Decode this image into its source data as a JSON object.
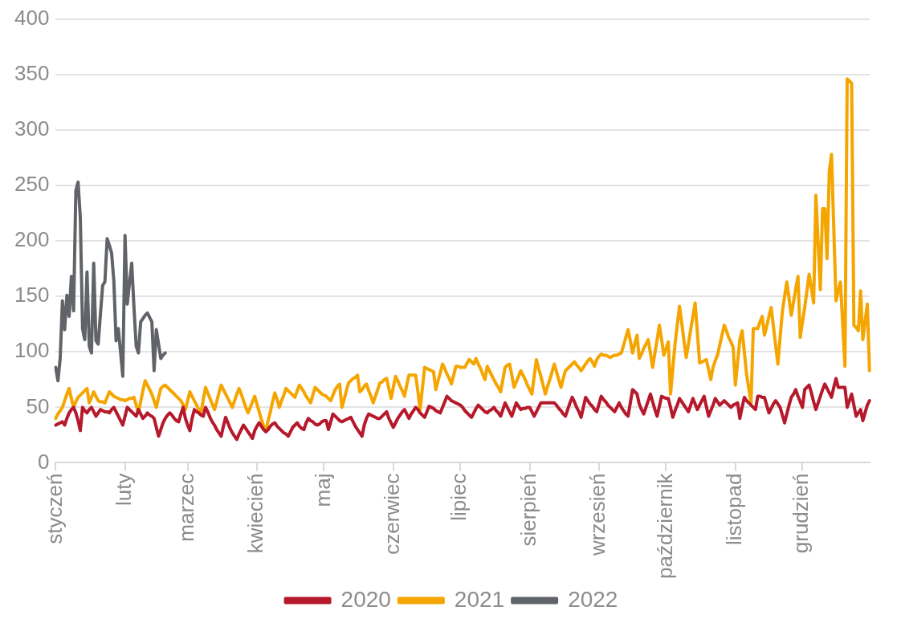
{
  "chart_data": {
    "type": "line",
    "categories": [
      "styczeń",
      null,
      null,
      null,
      null,
      null,
      null,
      null,
      null,
      null,
      null,
      null,
      null,
      null,
      null,
      null,
      null,
      null,
      null,
      null,
      null,
      null,
      null,
      null,
      null,
      null,
      null,
      null,
      null,
      null,
      null,
      "luty",
      null,
      null,
      null,
      null,
      null,
      null,
      null,
      null,
      null,
      null,
      null,
      null,
      null,
      null,
      null,
      null,
      null,
      null,
      null,
      null,
      null,
      null,
      null,
      null,
      null,
      null,
      null,
      "marzec",
      null,
      null,
      null,
      null,
      null,
      null,
      null,
      null,
      null,
      null,
      null,
      null,
      null,
      null,
      null,
      null,
      null,
      null,
      null,
      null,
      null,
      null,
      null,
      null,
      null,
      null,
      null,
      null,
      null,
      null,
      "kwiecień",
      null,
      null,
      null,
      null,
      null,
      null,
      null,
      null,
      null,
      null,
      null,
      null,
      null,
      null,
      null,
      null,
      null,
      null,
      null,
      null,
      null,
      null,
      null,
      null,
      null,
      null,
      null,
      null,
      null,
      "maj",
      null,
      null,
      null,
      null,
      null,
      null,
      null,
      null,
      null,
      null,
      null,
      null,
      null,
      null,
      null,
      null,
      null,
      null,
      null,
      null,
      null,
      null,
      null,
      null,
      null,
      null,
      null,
      null,
      null,
      null,
      "czerwiec",
      null,
      null,
      null,
      null,
      null,
      null,
      null,
      null,
      null,
      null,
      null,
      null,
      null,
      null,
      null,
      null,
      null,
      null,
      null,
      null,
      null,
      null,
      null,
      null,
      null,
      null,
      null,
      null,
      null,
      "lipiec",
      null,
      null,
      null,
      null,
      null,
      null,
      null,
      null,
      null,
      null,
      null,
      null,
      null,
      null,
      null,
      null,
      null,
      null,
      null,
      null,
      null,
      null,
      null,
      null,
      null,
      null,
      null,
      null,
      null,
      null,
      "sierpień",
      null,
      null,
      null,
      null,
      null,
      null,
      null,
      null,
      null,
      null,
      null,
      null,
      null,
      null,
      null,
      null,
      null,
      null,
      null,
      null,
      null,
      null,
      null,
      null,
      null,
      null,
      null,
      null,
      null,
      null,
      "wrzesień",
      null,
      null,
      null,
      null,
      null,
      null,
      null,
      null,
      null,
      null,
      null,
      null,
      null,
      null,
      null,
      null,
      null,
      null,
      null,
      null,
      null,
      null,
      null,
      null,
      null,
      null,
      null,
      null,
      null,
      "październik",
      null,
      null,
      null,
      null,
      null,
      null,
      null,
      null,
      null,
      null,
      null,
      null,
      null,
      null,
      null,
      null,
      null,
      null,
      null,
      null,
      null,
      null,
      null,
      null,
      null,
      null,
      null,
      null,
      null,
      null,
      "listopad",
      null,
      null,
      null,
      null,
      null,
      null,
      null,
      null,
      null,
      null,
      null,
      null,
      null,
      null,
      null,
      null,
      null,
      null,
      null,
      null,
      null,
      null,
      null,
      null,
      null,
      null,
      null,
      null,
      null,
      "grudzień",
      null,
      null,
      null,
      null,
      null,
      null,
      null,
      null,
      null,
      null,
      null,
      null,
      null,
      null,
      null,
      null,
      null,
      null,
      null,
      null,
      null,
      null,
      null,
      null,
      null,
      null,
      null,
      null,
      null,
      null
    ],
    "ylim": [
      0,
      400
    ],
    "yticks": [
      0,
      50,
      100,
      150,
      200,
      250,
      300,
      350,
      400
    ],
    "grid": "y",
    "legend": "bottom",
    "marker": "none",
    "line_style": "solid",
    "series": [
      {
        "name": "2020",
        "color": "#b5192b",
        "values": [
          34,
          35,
          36,
          37,
          34,
          40,
          45,
          48,
          50,
          45,
          38,
          29,
          50,
          47,
          45,
          48,
          50,
          46,
          42,
          45,
          48,
          47,
          46,
          46,
          45,
          48,
          50,
          46,
          42,
          38,
          34,
          42,
          50,
          48,
          46,
          44,
          42,
          48,
          44,
          40,
          42,
          45,
          43,
          42,
          40,
          32,
          24,
          30,
          36,
          40,
          43,
          45,
          43,
          40,
          38,
          37,
          44,
          50,
          40,
          34,
          29,
          40,
          48,
          46,
          45,
          43,
          42,
          50,
          46,
          41,
          37,
          34,
          30,
          27,
          24,
          33,
          41,
          36,
          31,
          27,
          24,
          21,
          26,
          30,
          34,
          31,
          28,
          25,
          22,
          29,
          33,
          36,
          33,
          30,
          28,
          30,
          33,
          35,
          36,
          33,
          31,
          29,
          27,
          26,
          24,
          28,
          32,
          34,
          36,
          33,
          31,
          30,
          36,
          40,
          38,
          37,
          35,
          34,
          35,
          37,
          38,
          38,
          30,
          37,
          44,
          42,
          40,
          38,
          37,
          38,
          39,
          40,
          41,
          37,
          33,
          30,
          27,
          24,
          34,
          40,
          44,
          43,
          42,
          41,
          40,
          40,
          42,
          44,
          46,
          40,
          36,
          32,
          36,
          40,
          43,
          46,
          48,
          44,
          40,
          44,
          47,
          50,
          48,
          45,
          43,
          41,
          46,
          51,
          50,
          49,
          47,
          46,
          45,
          50,
          55,
          60,
          58,
          56,
          55,
          54,
          53,
          52,
          50,
          47,
          45,
          43,
          41,
          45,
          49,
          52,
          50,
          48,
          46,
          45,
          47,
          48,
          50,
          47,
          45,
          42,
          48,
          54,
          50,
          46,
          42,
          48,
          54,
          51,
          48,
          49,
          49,
          50,
          50,
          46,
          42,
          46,
          50,
          54,
          54,
          54,
          54,
          54,
          54,
          54,
          52,
          49,
          47,
          44,
          42,
          48,
          54,
          59,
          55,
          50,
          46,
          41,
          50,
          59,
          56,
          53,
          51,
          48,
          46,
          53,
          60,
          57,
          55,
          52,
          50,
          48,
          46,
          50,
          54,
          50,
          47,
          44,
          42,
          54,
          66,
          64,
          62,
          53,
          48,
          44,
          50,
          56,
          62,
          55,
          48,
          42,
          51,
          60,
          59,
          58,
          58,
          50,
          41,
          47,
          52,
          58,
          55,
          52,
          49,
          46,
          52,
          58,
          53,
          48,
          52,
          56,
          60,
          51,
          42,
          47,
          52,
          58,
          55,
          52,
          54,
          56,
          54,
          52,
          50,
          52,
          53,
          54,
          40,
          50,
          59,
          56,
          54,
          52,
          50,
          48,
          60,
          60,
          59,
          59,
          52,
          45,
          49,
          53,
          56,
          53,
          50,
          43,
          36,
          44,
          52,
          59,
          62,
          66,
          60,
          55,
          50,
          66,
          68,
          70,
          63,
          55,
          48,
          54,
          60,
          66,
          71,
          67,
          63,
          59,
          68,
          76,
          68,
          68,
          68,
          68,
          50,
          56,
          62,
          52,
          42,
          45,
          48,
          38,
          45,
          52,
          56
        ]
      },
      {
        "name": "2021",
        "color": "#f5a500",
        "values": [
          40,
          44,
          47,
          50,
          56,
          62,
          67,
          58,
          50,
          55,
          59,
          61,
          63,
          65,
          67,
          54,
          59,
          64,
          60,
          56,
          55,
          55,
          54,
          59,
          64,
          62,
          60,
          59,
          58,
          57,
          57,
          56,
          57,
          58,
          58,
          59,
          52,
          45,
          55,
          65,
          74,
          70,
          66,
          62,
          56,
          50,
          59,
          67,
          69,
          70,
          68,
          66,
          64,
          62,
          60,
          58,
          56,
          52,
          48,
          56,
          64,
          60,
          56,
          52,
          48,
          45,
          57,
          68,
          63,
          58,
          53,
          48,
          55,
          63,
          70,
          66,
          62,
          58,
          54,
          50,
          56,
          62,
          67,
          62,
          56,
          50,
          45,
          50,
          55,
          60,
          53,
          46,
          39,
          33,
          29,
          38,
          46,
          55,
          63,
          57,
          50,
          56,
          61,
          67,
          65,
          63,
          61,
          59,
          65,
          70,
          67,
          64,
          60,
          57,
          54,
          61,
          68,
          66,
          64,
          62,
          61,
          60,
          58,
          56,
          61,
          66,
          69,
          71,
          50,
          57,
          65,
          72,
          74,
          76,
          77,
          79,
          64,
          66,
          69,
          71,
          65,
          60,
          54,
          60,
          66,
          72,
          73,
          75,
          76,
          67,
          58,
          68,
          78,
          74,
          69,
          65,
          60,
          70,
          79,
          79,
          79,
          79,
          64,
          48,
          67,
          86,
          85,
          84,
          83,
          82,
          66,
          74,
          81,
          89,
          85,
          80,
          76,
          71,
          79,
          87,
          87,
          86,
          86,
          86,
          90,
          93,
          91,
          89,
          94,
          89,
          85,
          80,
          75,
          87,
          83,
          79,
          75,
          71,
          68,
          64,
          75,
          86,
          88,
          89,
          79,
          68,
          73,
          78,
          83,
          79,
          75,
          70,
          66,
          62,
          78,
          93,
          85,
          78,
          70,
          62,
          69,
          75,
          82,
          89,
          82,
          75,
          68,
          76,
          83,
          85,
          87,
          89,
          91,
          88,
          86,
          83,
          86,
          89,
          92,
          94,
          91,
          87,
          93,
          96,
          98,
          97,
          97,
          96,
          95,
          96,
          97,
          97,
          98,
          99,
          106,
          113,
          120,
          110,
          99,
          107,
          115,
          94,
          98,
          103,
          107,
          111,
          99,
          86,
          99,
          111,
          124,
          111,
          97,
          103,
          109,
          62,
          85,
          107,
          124,
          141,
          126,
          110,
          95,
          107,
          120,
          132,
          144,
          117,
          90,
          91,
          92,
          93,
          84,
          75,
          86,
          92,
          97,
          106,
          115,
          124,
          119,
          113,
          109,
          104,
          70,
          91,
          111,
          119,
          100,
          80,
          67,
          54,
          121,
          121,
          121,
          127,
          132,
          115,
          123,
          132,
          140,
          123,
          106,
          89,
          113,
          136,
          150,
          163,
          148,
          133,
          145,
          157,
          168,
          113,
          127,
          140,
          155,
          170,
          157,
          144,
          241,
          199,
          156,
          229,
          229,
          184,
          263,
          278,
          212,
          146,
          155,
          163,
          125,
          87,
          346,
          344,
          342,
          124,
          122,
          119,
          155,
          111,
          127,
          143,
          83
        ]
      },
      {
        "name": "2022",
        "color": "#606468",
        "values": [
          86,
          74,
          94,
          146,
          120,
          151,
          132,
          168,
          137,
          245,
          253,
          221,
          121,
          111,
          172,
          105,
          99,
          180,
          110,
          107,
          134,
          160,
          163,
          202,
          196,
          189,
          164,
          110,
          121,
          100,
          78,
          205,
          143,
          162,
          180,
          140,
          105,
          99,
          127,
          130,
          133,
          135,
          131,
          127,
          83,
          120,
          107,
          94,
          97,
          99,
          null,
          null,
          null,
          null,
          null,
          null,
          null,
          null,
          null,
          null,
          null,
          null,
          null,
          null,
          null,
          null,
          null,
          null,
          null,
          null,
          null,
          null,
          null,
          null,
          null,
          null,
          null,
          null,
          null,
          null,
          null,
          null,
          null,
          null,
          null,
          null,
          null,
          null,
          null,
          null,
          null,
          null,
          null,
          null,
          null,
          null,
          null,
          null,
          null,
          null,
          null,
          null,
          null,
          null,
          null,
          null,
          null,
          null,
          null,
          null,
          null,
          null,
          null,
          null,
          null,
          null,
          null,
          null,
          null,
          null,
          null,
          null,
          null,
          null,
          null,
          null,
          null,
          null,
          null,
          null,
          null,
          null,
          null,
          null,
          null,
          null,
          null,
          null,
          null,
          null,
          null,
          null,
          null,
          null,
          null,
          null,
          null,
          null,
          null,
          null,
          null,
          null,
          null,
          null,
          null,
          null,
          null,
          null,
          null,
          null,
          null,
          null,
          null,
          null,
          null,
          null,
          null,
          null,
          null,
          null,
          null,
          null,
          null,
          null,
          null,
          null,
          null,
          null,
          null,
          null,
          null,
          null,
          null,
          null,
          null,
          null,
          null,
          null,
          null,
          null,
          null,
          null,
          null,
          null,
          null,
          null,
          null,
          null,
          null,
          null,
          null,
          null,
          null,
          null,
          null,
          null,
          null,
          null,
          null,
          null,
          null,
          null,
          null,
          null,
          null,
          null,
          null,
          null,
          null,
          null,
          null,
          null,
          null,
          null,
          null,
          null,
          null,
          null,
          null,
          null,
          null,
          null,
          null,
          null,
          null,
          null,
          null,
          null,
          null,
          null,
          null,
          null,
          null,
          null,
          null,
          null,
          null,
          null,
          null,
          null,
          null,
          null,
          null,
          null,
          null,
          null,
          null,
          null,
          null,
          null,
          null,
          null,
          null,
          null,
          null,
          null,
          null,
          null,
          null,
          null,
          null,
          null,
          null,
          null,
          null,
          null,
          null,
          null,
          null,
          null,
          null,
          null,
          null,
          null,
          null,
          null,
          null,
          null,
          null,
          null,
          null,
          null,
          null,
          null,
          null,
          null,
          null,
          null,
          null,
          null,
          null,
          null,
          null,
          null,
          null,
          null,
          null,
          null,
          null,
          null,
          null,
          null,
          null,
          null,
          null,
          null,
          null,
          null,
          null,
          null,
          null,
          null,
          null,
          null,
          null,
          null,
          null,
          null,
          null,
          null,
          null,
          null,
          null,
          null,
          null,
          null,
          null,
          null,
          null,
          null,
          null,
          null,
          null,
          null,
          null,
          null,
          null,
          null,
          null,
          null,
          null,
          null,
          null,
          null,
          null,
          null,
          null,
          null,
          null,
          null,
          null,
          null,
          null,
          null,
          null
        ]
      }
    ]
  }
}
